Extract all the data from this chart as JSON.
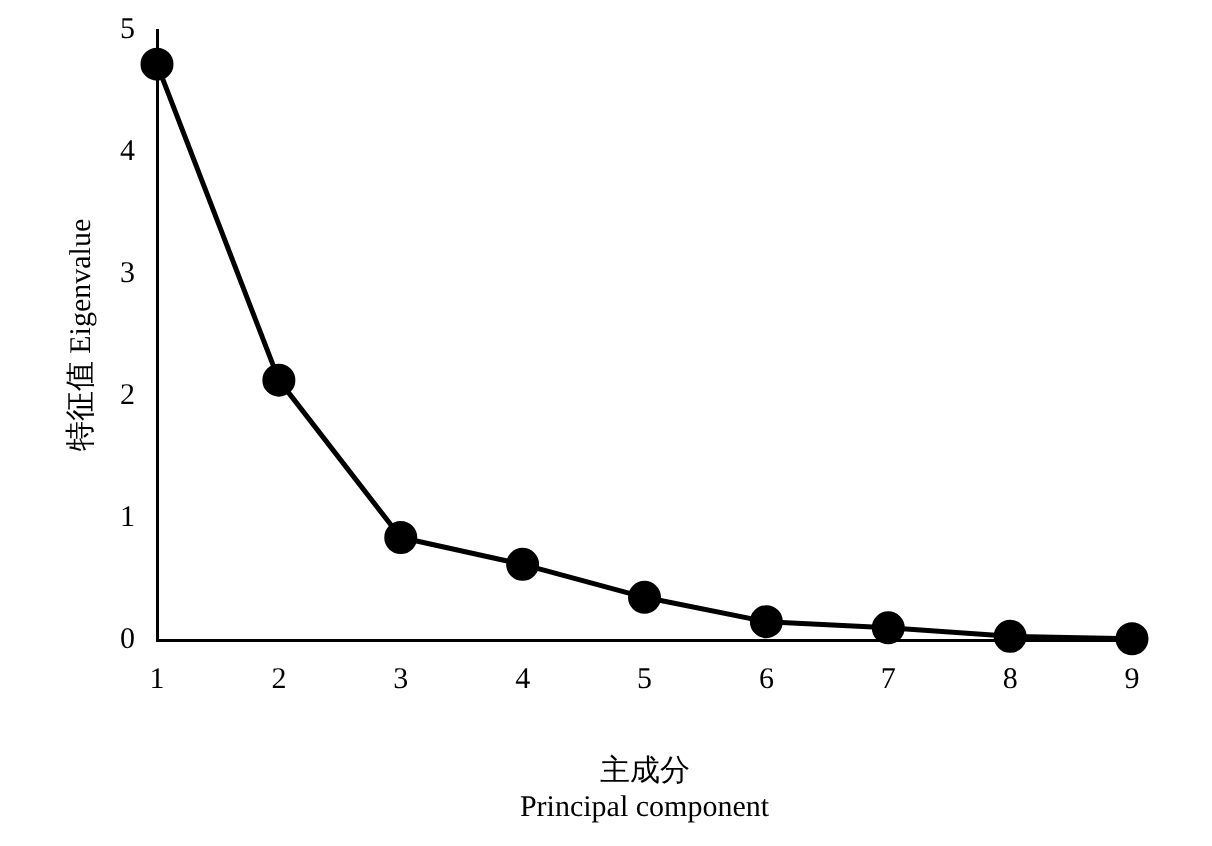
{
  "chart_data": {
    "type": "line",
    "xlabel": "主成分\nPrincipal component",
    "ylabel": "特征值 Eigenvalue",
    "x": [
      1,
      2,
      3,
      4,
      5,
      6,
      7,
      8,
      9
    ],
    "series": [
      {
        "color": "#000000",
        "values": [
          4.72,
          2.13,
          0.84,
          0.62,
          0.35,
          0.15,
          0.1,
          0.03,
          0.01
        ]
      }
    ],
    "xlim": [
      1,
      9
    ],
    "xticks": [
      1,
      2,
      3,
      4,
      5,
      6,
      7,
      8,
      9
    ],
    "ylim": [
      0,
      5
    ],
    "yticks": [
      0,
      1,
      2,
      3,
      4,
      5
    ],
    "grid": false,
    "legend": false,
    "marker": "circle",
    "line_style": "solid"
  }
}
